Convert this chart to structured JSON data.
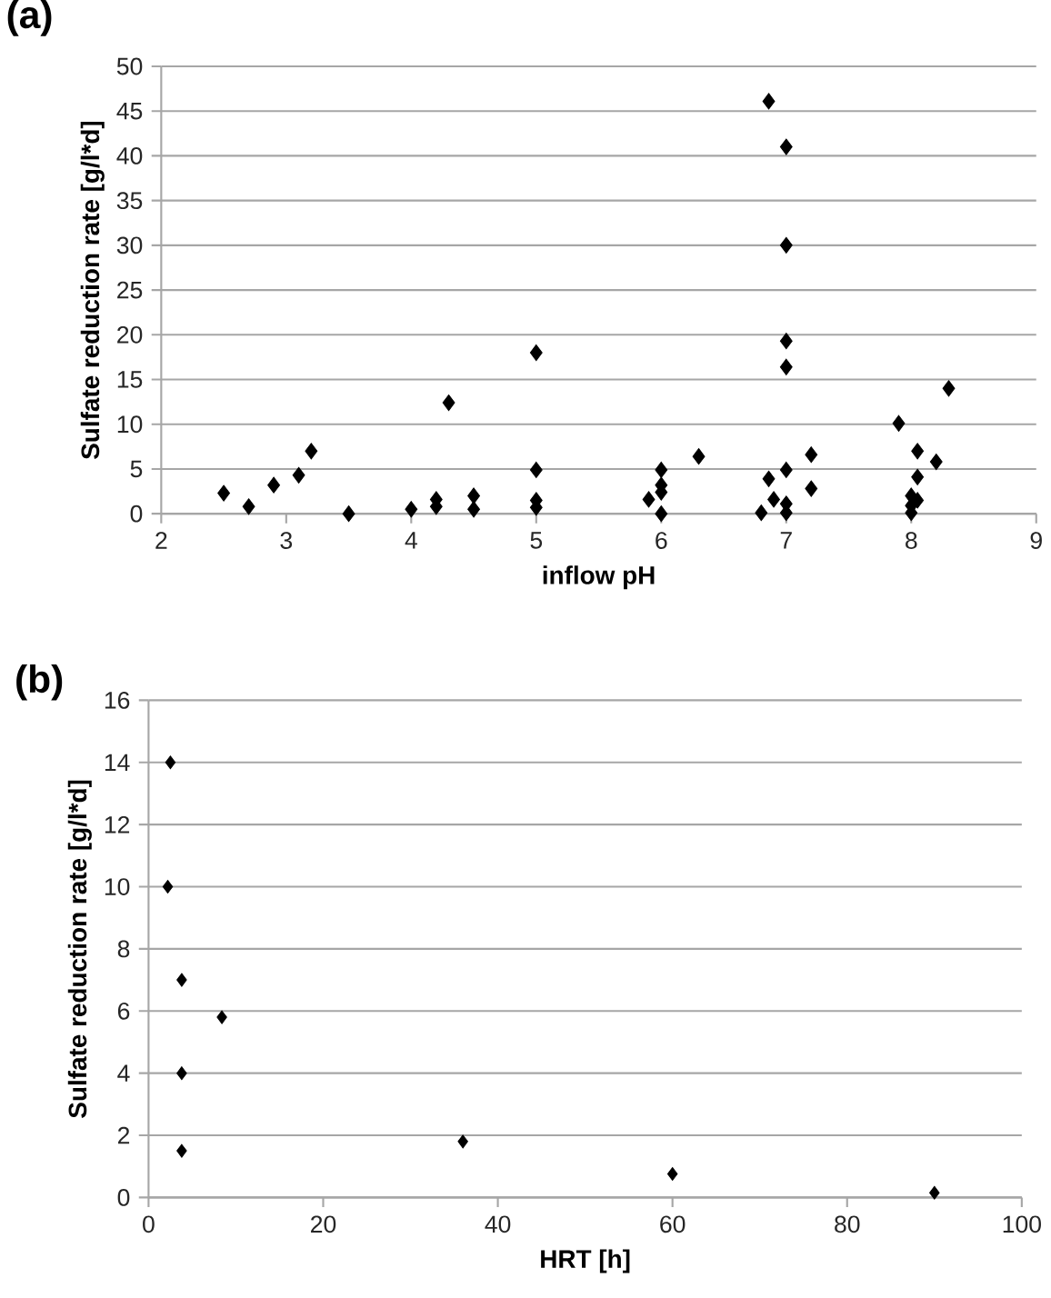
{
  "chart_data": [
    {
      "type": "scatter",
      "title": "(a)",
      "xlabel": "inflow pH",
      "ylabel": "Sulfate reduction rate [g/l*d]",
      "color": "#000000",
      "marker": "diamond",
      "grid": "y",
      "xlim": [
        2,
        9
      ],
      "ylim": [
        0,
        50
      ],
      "xticks": [
        2,
        3,
        4,
        5,
        6,
        7,
        8,
        9
      ],
      "yticks": [
        0,
        5,
        10,
        15,
        20,
        25,
        30,
        35,
        40,
        45,
        50
      ],
      "x": [
        2.5,
        2.7,
        2.9,
        3.1,
        3.2,
        3.5,
        4.0,
        4.2,
        4.2,
        4.3,
        4.5,
        4.5,
        5.0,
        5.0,
        5.0,
        5.0,
        5.9,
        6.0,
        6.0,
        6.0,
        6.0,
        6.3,
        6.86,
        7.0,
        7.0,
        7.0,
        7.0,
        6.8,
        6.86,
        6.9,
        7.0,
        7.0,
        7.0,
        7.2,
        7.2,
        7.9,
        8.05,
        8.2,
        8.3,
        8.05,
        8.0,
        8.05,
        8.0,
        8.0
      ],
      "values": [
        2.3,
        0.8,
        3.2,
        4.3,
        7.0,
        0,
        0.5,
        1.6,
        0.8,
        12.4,
        2.0,
        0.5,
        18.0,
        4.9,
        1.5,
        0.7,
        1.6,
        4.9,
        3.2,
        2.4,
        0,
        6.4,
        46.1,
        41.0,
        30.0,
        19.3,
        16.4,
        0.1,
        3.9,
        1.6,
        4.9,
        1.1,
        0.1,
        6.6,
        2.8,
        10.1,
        7.0,
        5.8,
        14.0,
        4.1,
        2.0,
        1.5,
        0.9,
        0.1
      ]
    },
    {
      "type": "scatter",
      "title": "(b)",
      "xlabel": "HRT [h]",
      "ylabel": "Sulfate reduction rate [g/l*d]",
      "color": "#000000",
      "marker": "diamond",
      "grid": "y",
      "xlim": [
        0,
        100
      ],
      "ylim": [
        0,
        16
      ],
      "xticks": [
        0,
        20,
        40,
        60,
        80,
        100
      ],
      "yticks": [
        0,
        2,
        4,
        6,
        8,
        10,
        12,
        14,
        16
      ],
      "x": [
        2.5,
        2.2,
        3.8,
        8.4,
        3.8,
        3.8,
        36,
        60,
        90
      ],
      "values": [
        14.0,
        10.0,
        7.0,
        5.8,
        4.0,
        1.5,
        1.8,
        0.76,
        0.15
      ]
    }
  ]
}
